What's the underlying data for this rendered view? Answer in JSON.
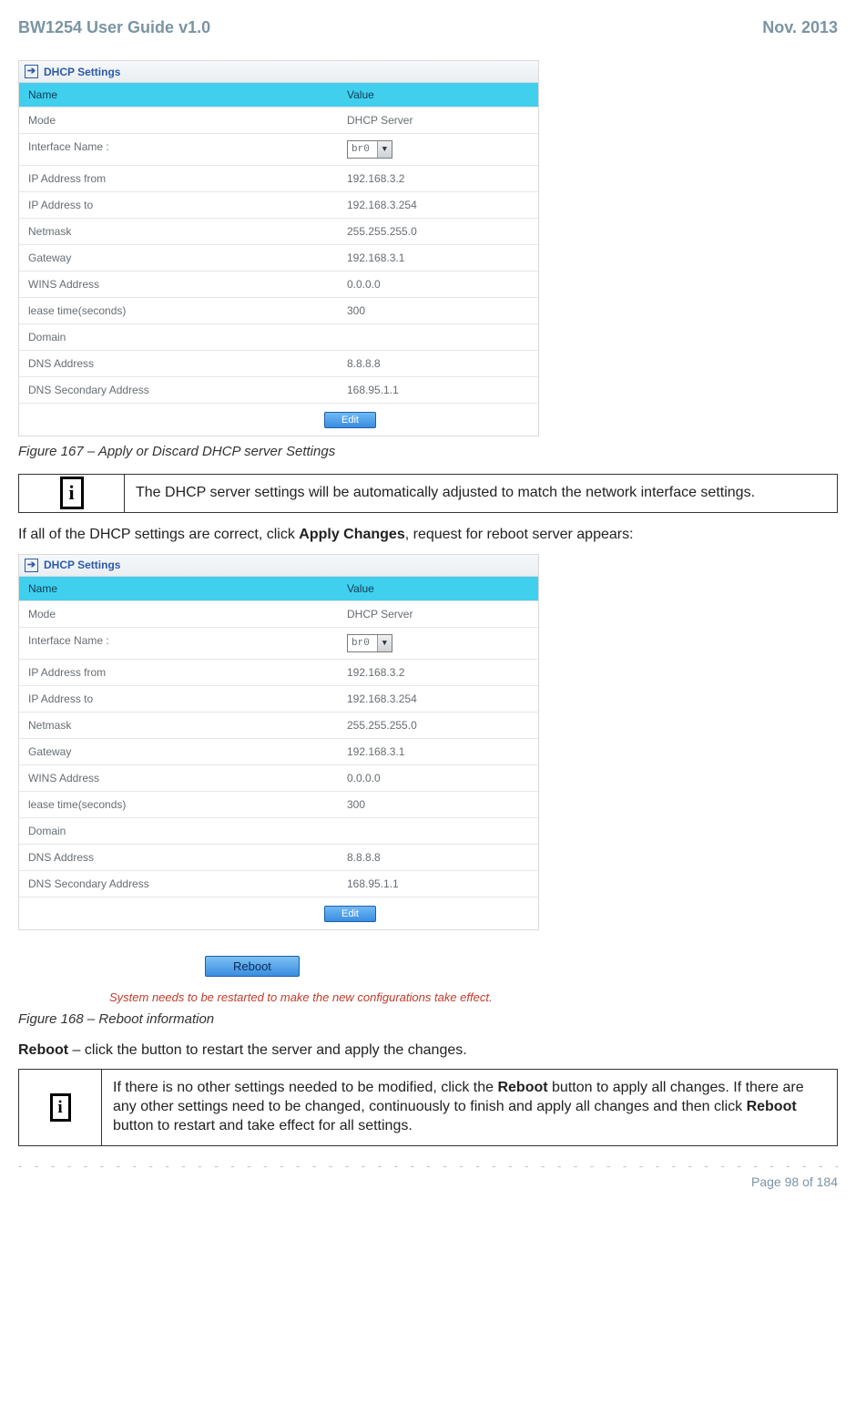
{
  "header": {
    "left": "BW1254 User Guide v1.0",
    "right": "Nov.  2013"
  },
  "dhcp_panel": {
    "title": "DHCP Settings",
    "col_name": "Name",
    "col_value": "Value",
    "dropdown_value": "br0",
    "edit_label": "Edit",
    "rows": [
      {
        "name": "Mode",
        "value": "DHCP Server"
      },
      {
        "name": "Interface Name :",
        "value": "__dropdown__"
      },
      {
        "name": "IP Address from",
        "value": "192.168.3.2"
      },
      {
        "name": "IP Address to",
        "value": "192.168.3.254"
      },
      {
        "name": "Netmask",
        "value": "255.255.255.0"
      },
      {
        "name": "Gateway",
        "value": "192.168.3.1"
      },
      {
        "name": "WINS Address",
        "value": "0.0.0.0"
      },
      {
        "name": "lease time(seconds)",
        "value": "300"
      },
      {
        "name": "Domain",
        "value": ""
      },
      {
        "name": "DNS Address",
        "value": "8.8.8.8"
      },
      {
        "name": "DNS Secondary Address",
        "value": "168.95.1.1"
      }
    ]
  },
  "fig167": "Figure 167 – Apply or Discard DHCP server Settings",
  "note1": "The DHCP server settings will be automatically adjusted to match the network interface settings.",
  "body1_pre": "If all of the DHCP settings are correct, click ",
  "body1_bold": "Apply Changes",
  "body1_post": ", request for reboot server appears:",
  "reboot_btn": "Reboot",
  "restart_msg": "System needs to be restarted to make the new configurations take effect.",
  "fig168": "Figure 168 – Reboot information",
  "body2_bold": "Reboot",
  "body2_post": " – click the button to restart the server and apply the changes.",
  "note2_a": "If there is no other settings needed to be modified, click the ",
  "note2_b": "Reboot",
  "note2_c": " button to apply all changes. If there are any other settings need to be changed, continuously to finish and apply all changes and then click ",
  "note2_d": "Reboot",
  "note2_e": " button to restart and take effect  for all settings.",
  "footer_page": "Page 98 of 184",
  "colors": {
    "header_text": "#7a94a3",
    "table_header_bg": "#41cfee",
    "button_bg": "#3a8de0",
    "restart_text": "#c23a2a"
  }
}
